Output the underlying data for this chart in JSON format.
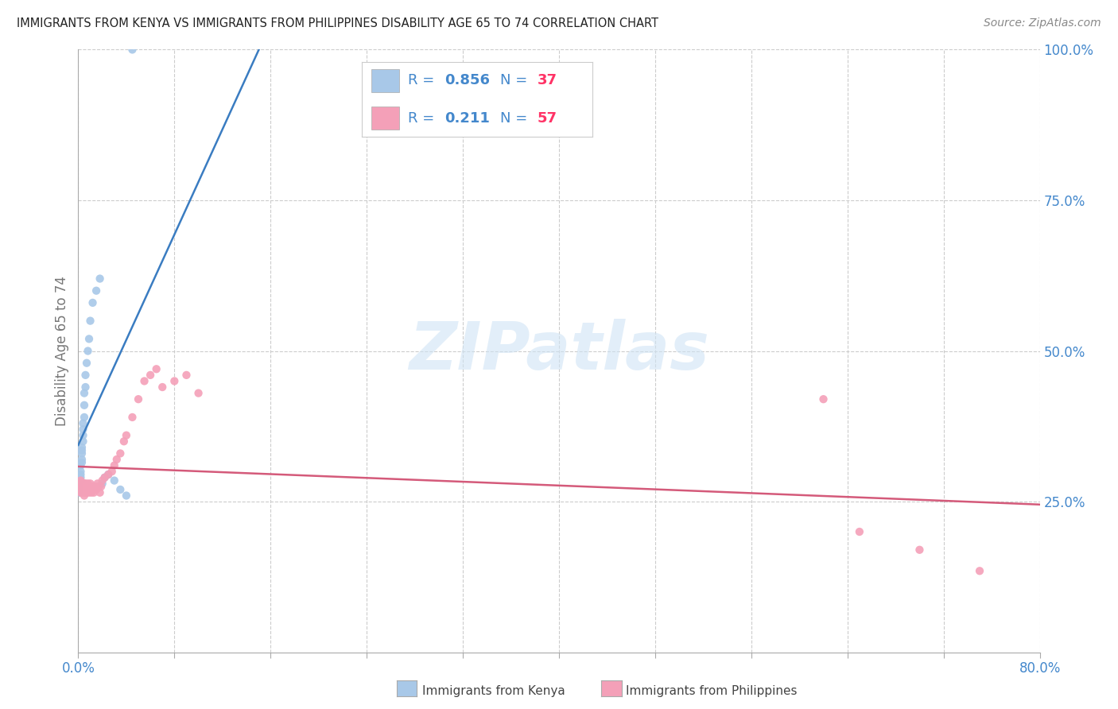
{
  "title": "IMMIGRANTS FROM KENYA VS IMMIGRANTS FROM PHILIPPINES DISABILITY AGE 65 TO 74 CORRELATION CHART",
  "source": "Source: ZipAtlas.com",
  "ylabel": "Disability Age 65 to 74",
  "kenya_R": 0.856,
  "kenya_N": 37,
  "philippines_R": 0.211,
  "philippines_N": 57,
  "kenya_color": "#a8c8e8",
  "kenya_line_color": "#3a7cc1",
  "philippines_color": "#f4a0b8",
  "philippines_line_color": "#d45a7a",
  "kenya_x": [
    0.001,
    0.001,
    0.001,
    0.001,
    0.002,
    0.002,
    0.002,
    0.002,
    0.002,
    0.003,
    0.003,
    0.003,
    0.003,
    0.003,
    0.004,
    0.004,
    0.004,
    0.004,
    0.005,
    0.005,
    0.005,
    0.006,
    0.006,
    0.007,
    0.008,
    0.009,
    0.01,
    0.012,
    0.015,
    0.018,
    0.02,
    0.022,
    0.025,
    0.03,
    0.035,
    0.04,
    0.045
  ],
  "kenya_y": [
    0.27,
    0.275,
    0.265,
    0.28,
    0.285,
    0.29,
    0.295,
    0.3,
    0.31,
    0.315,
    0.32,
    0.33,
    0.335,
    0.34,
    0.35,
    0.36,
    0.37,
    0.38,
    0.39,
    0.41,
    0.43,
    0.44,
    0.46,
    0.48,
    0.5,
    0.52,
    0.55,
    0.58,
    0.6,
    0.62,
    0.28,
    0.29,
    0.295,
    0.285,
    0.27,
    0.26,
    1.0
  ],
  "philippines_x": [
    0.001,
    0.001,
    0.002,
    0.002,
    0.002,
    0.003,
    0.003,
    0.003,
    0.004,
    0.004,
    0.004,
    0.005,
    0.005,
    0.005,
    0.005,
    0.006,
    0.006,
    0.006,
    0.007,
    0.007,
    0.008,
    0.008,
    0.009,
    0.009,
    0.01,
    0.01,
    0.011,
    0.012,
    0.013,
    0.014,
    0.015,
    0.016,
    0.017,
    0.018,
    0.019,
    0.02,
    0.022,
    0.025,
    0.028,
    0.03,
    0.032,
    0.035,
    0.038,
    0.04,
    0.045,
    0.05,
    0.055,
    0.06,
    0.065,
    0.07,
    0.08,
    0.09,
    0.1,
    0.62,
    0.65,
    0.7,
    0.75
  ],
  "philippines_y": [
    0.27,
    0.28,
    0.265,
    0.275,
    0.285,
    0.27,
    0.265,
    0.28,
    0.27,
    0.275,
    0.265,
    0.275,
    0.28,
    0.26,
    0.27,
    0.265,
    0.275,
    0.28,
    0.27,
    0.265,
    0.275,
    0.28,
    0.265,
    0.275,
    0.27,
    0.28,
    0.265,
    0.275,
    0.265,
    0.275,
    0.27,
    0.28,
    0.275,
    0.265,
    0.275,
    0.285,
    0.29,
    0.295,
    0.3,
    0.31,
    0.32,
    0.33,
    0.35,
    0.36,
    0.39,
    0.42,
    0.45,
    0.46,
    0.47,
    0.44,
    0.45,
    0.46,
    0.43,
    0.42,
    0.2,
    0.17,
    0.135
  ],
  "xlim": [
    0,
    0.8
  ],
  "ylim": [
    0,
    1.0
  ],
  "x_ticks": [
    0.0,
    0.08,
    0.16,
    0.24,
    0.32,
    0.4,
    0.48,
    0.56,
    0.64,
    0.72,
    0.8
  ],
  "y_ticks_right": [
    0.0,
    0.25,
    0.5,
    0.75,
    1.0
  ],
  "y_tick_labels_right": [
    "",
    "25.0%",
    "50.0%",
    "75.0%",
    "100.0%"
  ],
  "watermark": "ZIPatlas",
  "background_color": "#ffffff",
  "grid_color": "#cccccc",
  "title_color": "#222222",
  "axis_color": "#4488cc",
  "legend_text_color": "#4488cc",
  "legend_n_color": "#ff3366"
}
